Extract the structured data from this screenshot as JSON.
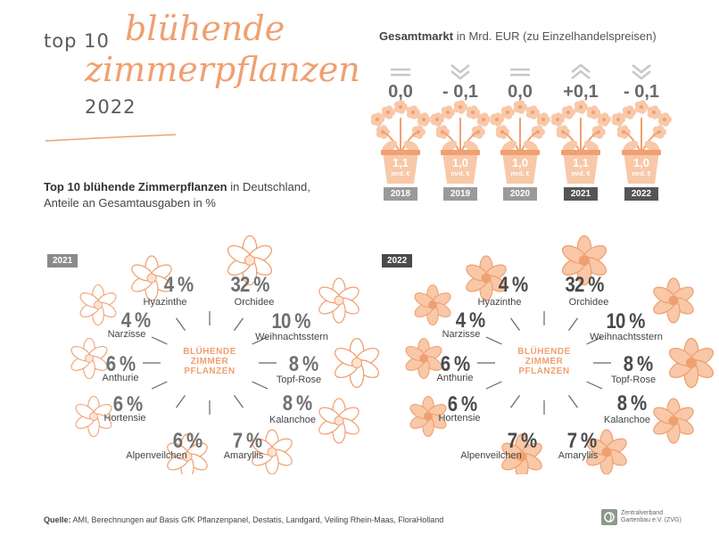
{
  "header": {
    "prefix": "top 10",
    "script_line1": "blühende",
    "script_line2": "zimmerpflanzen",
    "year": "2022"
  },
  "subtitle": {
    "bold": "Top 10 blühende Zimmerpflanzen",
    "rest_line1": " in Deutschland,",
    "line2": "Anteile an Gesamtausgaben in %"
  },
  "market": {
    "title_bold": "Gesamtmarkt",
    "title_rest": " in Mrd. EUR (zu Einzelhandelspreisen)",
    "unit": "mrd. €",
    "items": [
      {
        "year": "2018",
        "value": "1,1",
        "change": "0,0",
        "trend": "flat"
      },
      {
        "year": "2019",
        "value": "1,0",
        "change": "- 0,1",
        "trend": "down"
      },
      {
        "year": "2020",
        "value": "1,0",
        "change": "0,0",
        "trend": "flat"
      },
      {
        "year": "2021",
        "value": "1,1",
        "change": "+0,1",
        "trend": "up"
      },
      {
        "year": "2022",
        "value": "1,0",
        "change": "- 0,1",
        "trend": "down"
      }
    ]
  },
  "radial_center": [
    "BLÜHENDE",
    "ZIMMER",
    "PFLANZEN"
  ],
  "chart_data": [
    {
      "type": "table",
      "title": "2021",
      "categories": [
        "Hyazinthe",
        "Orchidee",
        "Weihnachtsstern",
        "Topf-Rose",
        "Kalanchoe",
        "Amaryllis",
        "Alpenveilchen",
        "Hortensie",
        "Anthurie",
        "Narzisse"
      ],
      "values": [
        4,
        32,
        10,
        8,
        8,
        7,
        6,
        6,
        6,
        4
      ],
      "labels": [
        "4 %",
        "32 %",
        "10 %",
        "8 %",
        "8 %",
        "7 %",
        "6 %",
        "6 %",
        "6 %",
        "4 %"
      ]
    },
    {
      "type": "table",
      "title": "2022",
      "categories": [
        "Hyazinthe",
        "Orchidee",
        "Weihnachtsstern",
        "Topf-Rose",
        "Kalanchoe",
        "Amaryllis",
        "Alpenveilchen",
        "Hortensie",
        "Anthurie",
        "Narzisse"
      ],
      "values": [
        4,
        32,
        10,
        8,
        8,
        7,
        7,
        6,
        6,
        4
      ],
      "labels": [
        "4 %",
        "32 %",
        "10 %",
        "8 %",
        "8 %",
        "7 %",
        "7 %",
        "6 %",
        "6 %",
        "4 %"
      ]
    }
  ],
  "colors": {
    "accent": "#f0a070",
    "accent_light": "#f8c8a8",
    "badge_2021": "#8a8a8a",
    "badge_2022": "#4a4a4a",
    "market_year_light": "#9a9a9a",
    "market_year_dark": "#555555"
  },
  "footer": {
    "source_bold": "Quelle:",
    "source_text": " AMI, Berechnungen auf Basis GfK Pflanzenpanel, Destatis, Landgard, Veiling Rhein-Maas, FloraHolland",
    "logo_line1": "Zentralverband",
    "logo_line2": "Gartenbau e.V. (ZVG)"
  }
}
